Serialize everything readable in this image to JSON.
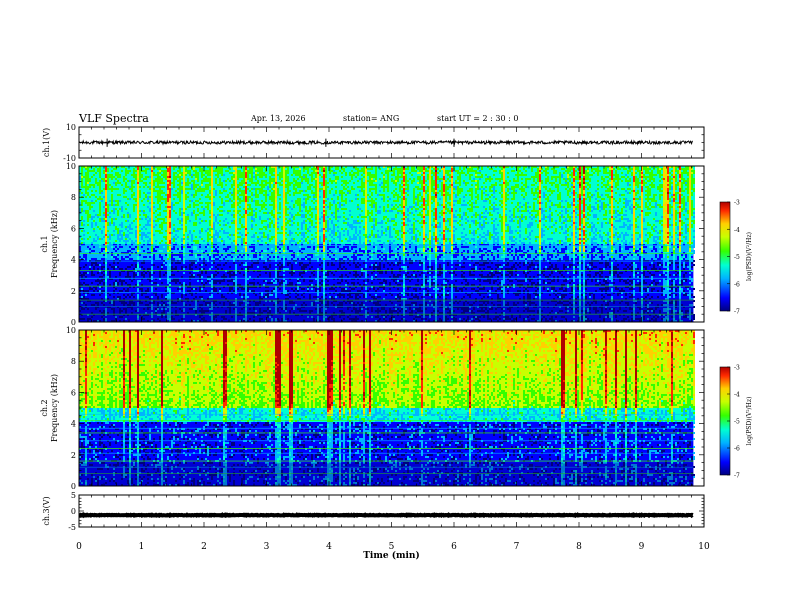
{
  "header": {
    "title": "VLF Spectra",
    "date": "Apr. 13, 2026",
    "station": "station= ANG",
    "start_time": "start  UT =  2 : 30 : 0"
  },
  "colors": {
    "spectrogram_scale": [
      "#00007f",
      "#0000ff",
      "#00b4ff",
      "#00ffd2",
      "#34ff00",
      "#c8ff00",
      "#ffd000",
      "#ff2a00",
      "#b00000"
    ],
    "waveform": "#000000"
  },
  "chart_data": [
    {
      "type": "line",
      "name": "ch1-waveform",
      "ylabel": "ch.1(V)",
      "ylim": [
        -10,
        10
      ],
      "yticks": [
        "10",
        "-10"
      ],
      "baseline_value": 0,
      "noise_amplitude": 1.0,
      "xlim": [
        0,
        10
      ],
      "data_extent_min": 9.83
    },
    {
      "type": "heatmap",
      "name": "ch1-spectrogram",
      "ylabel_line1": "ch.1",
      "ylabel_line2": "Frequency  (kHz)",
      "ylim": [
        0,
        10
      ],
      "yticks": [
        "0",
        "2",
        "4",
        "6",
        "8",
        "10"
      ],
      "xlim": [
        0,
        10
      ],
      "data_extent_min": 9.83,
      "colorbar": {
        "label": "log(PSD)(V²/Hz)",
        "range": [
          -7,
          -3
        ],
        "ticks": [
          "-3",
          "-4",
          "-5",
          "-6",
          "-7"
        ]
      }
    },
    {
      "type": "heatmap",
      "name": "ch2-spectrogram",
      "ylabel_line1": "ch.2",
      "ylabel_line2": "Frequency  (kHz)",
      "ylim": [
        0,
        10
      ],
      "yticks": [
        "0",
        "2",
        "4",
        "6",
        "8",
        "10"
      ],
      "xlim": [
        0,
        10
      ],
      "data_extent_min": 9.83,
      "colorbar": {
        "label": "log(PSD)(V²/Hz)",
        "range": [
          -7,
          -3
        ],
        "ticks": [
          "-3",
          "-4",
          "-5",
          "-6",
          "-7"
        ]
      }
    },
    {
      "type": "line",
      "name": "ch3-waveform",
      "ylabel": "ch.3(V)",
      "ylim": [
        -5,
        5
      ],
      "yticks": [
        "5",
        "0",
        "-5"
      ],
      "baseline_value": -1.3,
      "noise_amplitude": 0.1,
      "xlim": [
        0,
        10
      ],
      "data_extent_min": 9.83
    }
  ],
  "xaxis": {
    "label": "Time  (min)",
    "ticks": [
      "0",
      "1",
      "2",
      "3",
      "4",
      "5",
      "6",
      "7",
      "8",
      "9",
      "10"
    ]
  }
}
